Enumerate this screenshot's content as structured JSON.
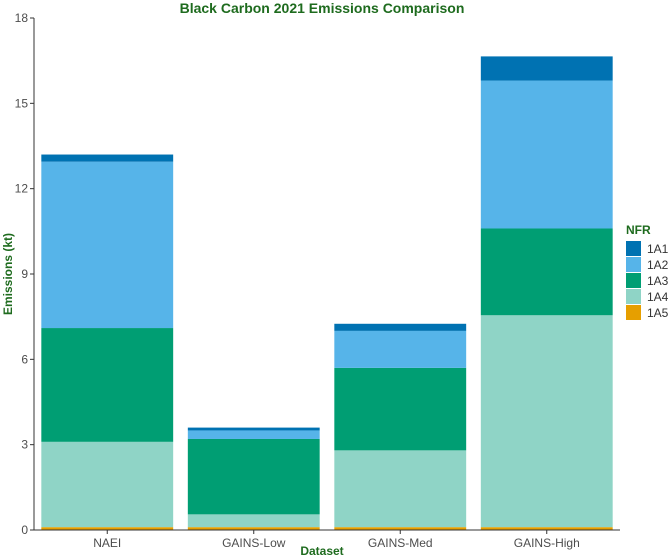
{
  "chart_data": {
    "type": "bar",
    "stacked": true,
    "title": "Black Carbon 2021 Emissions Comparison",
    "xlabel": "Dataset",
    "ylabel": "Emissions (kt)",
    "ylim": [
      0,
      18
    ],
    "yticks": [
      0,
      3,
      6,
      9,
      12,
      15,
      18
    ],
    "grid": false,
    "legend_title": "NFR",
    "legend_position": "right",
    "categories": [
      "NAEI",
      "GAINS-Low",
      "GAINS-Med",
      "GAINS-High"
    ],
    "series": [
      {
        "name": "1A5",
        "color": "#E69F00",
        "values": [
          0.1,
          0.1,
          0.1,
          0.1
        ]
      },
      {
        "name": "1A4",
        "color": "#8FD4C6",
        "values": [
          3.0,
          0.45,
          2.7,
          7.45
        ]
      },
      {
        "name": "1A3",
        "color": "#009E73",
        "values": [
          4.0,
          2.65,
          2.9,
          3.05
        ]
      },
      {
        "name": "1A2",
        "color": "#56B4E9",
        "values": [
          5.85,
          0.3,
          1.3,
          5.2
        ]
      },
      {
        "name": "1A1",
        "color": "#0072B2",
        "values": [
          0.25,
          0.1,
          0.25,
          0.85
        ]
      }
    ],
    "legend_order": [
      "1A1",
      "1A2",
      "1A3",
      "1A4",
      "1A5"
    ]
  }
}
